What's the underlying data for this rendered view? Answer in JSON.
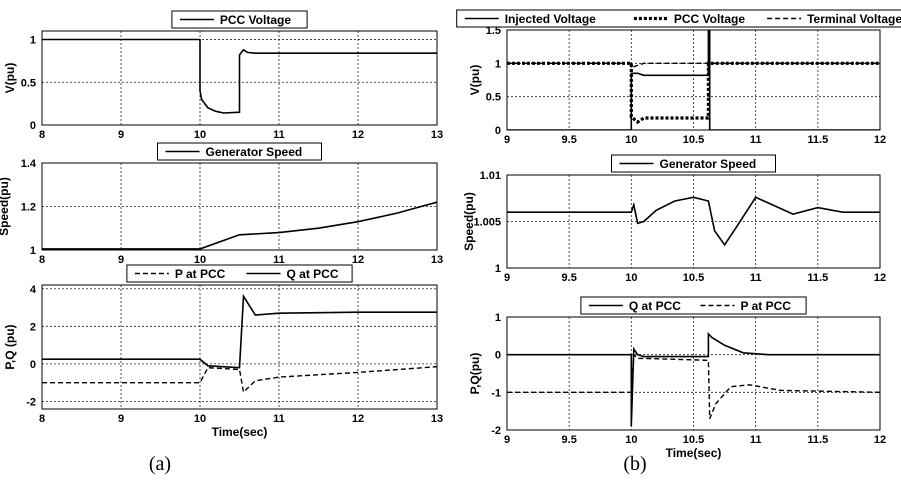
{
  "captions": [
    "(a)",
    "(b)"
  ],
  "chart_data": [
    {
      "type": "line",
      "panel": "a1",
      "xlim": [
        8,
        13
      ],
      "ylim": [
        0,
        1.1
      ],
      "xticks": [
        8,
        9,
        10,
        11,
        12,
        13
      ],
      "yticks": [
        0,
        0.5,
        1
      ],
      "ylabel": "V(pu)",
      "xlabel": "",
      "grid": true,
      "legend": "top-center",
      "series": [
        {
          "name": "PCC Voltage",
          "style": "solid",
          "x": [
            8,
            10.0,
            10.0,
            10.02,
            10.1,
            10.2,
            10.3,
            10.5,
            10.5,
            10.55,
            10.6,
            10.7,
            11,
            13
          ],
          "y": [
            1,
            1,
            0.4,
            0.3,
            0.2,
            0.16,
            0.14,
            0.15,
            0.82,
            0.88,
            0.85,
            0.84,
            0.84,
            0.84
          ]
        }
      ]
    },
    {
      "type": "line",
      "panel": "a2",
      "xlim": [
        8,
        13
      ],
      "ylim": [
        1,
        1.4
      ],
      "xticks": [
        8,
        9,
        10,
        11,
        12,
        13
      ],
      "yticks": [
        1,
        1.2,
        1.4
      ],
      "ylabel": "Speed(pu)",
      "xlabel": "",
      "grid": true,
      "legend": "top-center",
      "series": [
        {
          "name": "Generator Speed",
          "style": "solid",
          "x": [
            8,
            10,
            10.5,
            11,
            11.5,
            12,
            12.5,
            13
          ],
          "y": [
            1.005,
            1.005,
            1.07,
            1.08,
            1.1,
            1.13,
            1.17,
            1.22
          ]
        }
      ]
    },
    {
      "type": "line",
      "panel": "a3",
      "xlim": [
        8,
        13
      ],
      "ylim": [
        -2.4,
        4.2
      ],
      "xticks": [
        8,
        9,
        10,
        11,
        12,
        13
      ],
      "yticks": [
        -2,
        0,
        2,
        4
      ],
      "ylabel": "P,Q (pu)",
      "xlabel": "Time(sec)",
      "grid": true,
      "legend": "top-center",
      "series": [
        {
          "name": "P at PCC",
          "style": "dashed",
          "x": [
            8,
            10,
            10.1,
            10.5,
            10.55,
            10.7,
            11,
            12,
            13
          ],
          "y": [
            -1,
            -1,
            -0.2,
            -0.3,
            -1.5,
            -0.9,
            -0.7,
            -0.45,
            -0.15
          ]
        },
        {
          "name": "Q at PCC",
          "style": "solid",
          "x": [
            8,
            10,
            10.1,
            10.5,
            10.55,
            10.7,
            11,
            12,
            13
          ],
          "y": [
            0.25,
            0.25,
            -0.1,
            -0.2,
            3.6,
            2.6,
            2.7,
            2.75,
            2.75
          ]
        }
      ]
    },
    {
      "type": "line",
      "panel": "b1",
      "xlim": [
        9,
        12
      ],
      "ylim": [
        0,
        1.5
      ],
      "xticks": [
        9,
        9.5,
        10,
        10.5,
        11,
        11.5,
        12
      ],
      "yticks": [
        0,
        0.5,
        1,
        1.5
      ],
      "ylabel": "V(pu)",
      "xlabel": "",
      "grid": true,
      "legend": "top",
      "series": [
        {
          "name": "Injected Voltage",
          "style": "solid",
          "x": [
            9,
            10.0,
            10.0,
            10.05,
            10.1,
            10.62,
            10.62,
            10.63,
            10.63,
            12
          ],
          "y": [
            0,
            0,
            0.85,
            0.85,
            0.82,
            0.82,
            1.5,
            1.5,
            0,
            0
          ]
        },
        {
          "name": "PCC Voltage",
          "style": "dotted",
          "x": [
            9,
            10.0,
            10.0,
            10.05,
            10.1,
            10.62,
            10.62,
            12
          ],
          "y": [
            1,
            1,
            0.2,
            0.12,
            0.18,
            0.18,
            1,
            1
          ]
        },
        {
          "name": "Terminal Voltage",
          "style": "dashed",
          "x": [
            9,
            10.0,
            10.02,
            10.1,
            10.62,
            10.64,
            12
          ],
          "y": [
            1,
            1,
            0.95,
            1,
            1,
            1,
            1
          ]
        }
      ]
    },
    {
      "type": "line",
      "panel": "b2",
      "xlim": [
        9,
        12
      ],
      "ylim": [
        1,
        1.01
      ],
      "xticks": [
        9,
        9.5,
        10,
        10.5,
        11,
        11.5,
        12
      ],
      "yticks": [
        1,
        1.005,
        1.01
      ],
      "ylabel": "Speed(pu)",
      "xlabel": "",
      "grid": true,
      "legend": "top-center",
      "series": [
        {
          "name": "Generator Speed",
          "style": "solid",
          "x": [
            9,
            10.0,
            10.02,
            10.05,
            10.1,
            10.2,
            10.35,
            10.5,
            10.62,
            10.67,
            10.75,
            10.85,
            11.0,
            11.1,
            11.3,
            11.5,
            11.7,
            12
          ],
          "y": [
            1.006,
            1.006,
            1.0068,
            1.0048,
            1.005,
            1.0062,
            1.0072,
            1.0076,
            1.0072,
            1.004,
            1.0025,
            1.0045,
            1.0076,
            1.007,
            1.0058,
            1.0065,
            1.006,
            1.006
          ]
        }
      ]
    },
    {
      "type": "line",
      "panel": "b3",
      "xlim": [
        9,
        12
      ],
      "ylim": [
        -2,
        1
      ],
      "xticks": [
        9,
        9.5,
        10,
        10.5,
        11,
        11.5,
        12
      ],
      "yticks": [
        -2,
        -1,
        0,
        1
      ],
      "ylabel": "P,Q(pu)",
      "xlabel": "Time(sec)",
      "grid": true,
      "legend": "top-center",
      "series": [
        {
          "name": "Q at PCC",
          "style": "solid",
          "x": [
            9,
            10.0,
            10.0,
            10.02,
            10.05,
            10.1,
            10.62,
            10.62,
            10.65,
            10.75,
            10.9,
            11.1,
            12
          ],
          "y": [
            0,
            0,
            -1.9,
            0.15,
            0,
            -0.05,
            -0.05,
            0.55,
            0.45,
            0.25,
            0.05,
            0,
            0
          ]
        },
        {
          "name": "P at PCC",
          "style": "dashed",
          "x": [
            9,
            10.0,
            10.02,
            10.05,
            10.1,
            10.62,
            10.63,
            10.68,
            10.8,
            10.95,
            11.2,
            12
          ],
          "y": [
            -1,
            -1,
            0,
            -0.1,
            -0.1,
            -0.15,
            -1.7,
            -1.3,
            -0.85,
            -0.8,
            -0.95,
            -1
          ]
        }
      ]
    }
  ]
}
